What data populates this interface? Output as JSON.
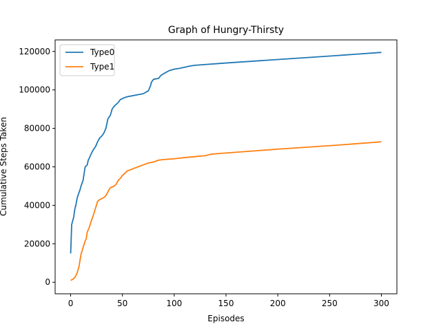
{
  "chart_data": {
    "type": "line",
    "title": "Graph of Hungry-Thirsty",
    "xlabel": "Episodes",
    "ylabel": "Cumulative Steps Taken",
    "xlim": [
      -15,
      315
    ],
    "ylim": [
      -6000,
      126000
    ],
    "xticks": [
      0,
      50,
      100,
      150,
      200,
      250,
      300
    ],
    "yticks": [
      0,
      20000,
      40000,
      60000,
      80000,
      100000,
      120000
    ],
    "grid": false,
    "legend_position": "top-left",
    "series": [
      {
        "name": "Type0",
        "color": "#1f77b4",
        "x": [
          0,
          1,
          2,
          3,
          4,
          5,
          6,
          7,
          8,
          9,
          10,
          12,
          14,
          15,
          16,
          17,
          18,
          20,
          22,
          24,
          26,
          28,
          30,
          32,
          34,
          36,
          38,
          39,
          40,
          42,
          44,
          46,
          48,
          50,
          52,
          55,
          60,
          65,
          70,
          75,
          77,
          78,
          80,
          85,
          87,
          90,
          95,
          100,
          105,
          110,
          115,
          120,
          150,
          200,
          250,
          300
        ],
        "y": [
          15000,
          30000,
          32000,
          34000,
          38000,
          40000,
          43000,
          45000,
          46500,
          48000,
          50000,
          53000,
          60000,
          60500,
          61000,
          63500,
          64500,
          67000,
          69000,
          70500,
          73000,
          75000,
          76000,
          77500,
          80000,
          85000,
          86500,
          88000,
          90000,
          91500,
          92500,
          93500,
          95000,
          95500,
          96000,
          96500,
          97000,
          97500,
          98000,
          99500,
          102000,
          104000,
          105500,
          106000,
          107500,
          108500,
          110000,
          110800,
          111200,
          111800,
          112400,
          112800,
          114000,
          115800,
          117600,
          119500
        ]
      },
      {
        "name": "Type1",
        "color": "#ff7f0e",
        "x": [
          0,
          2,
          4,
          6,
          8,
          10,
          12,
          14,
          15,
          16,
          18,
          20,
          22,
          24,
          26,
          28,
          30,
          32,
          34,
          36,
          38,
          40,
          42,
          44,
          46,
          48,
          50,
          52,
          55,
          58,
          60,
          65,
          70,
          75,
          80,
          85,
          90,
          95,
          100,
          110,
          120,
          130,
          135,
          140,
          150,
          200,
          250,
          300
        ],
        "y": [
          1000,
          1500,
          2500,
          4500,
          8000,
          14500,
          18000,
          21500,
          22500,
          26000,
          28500,
          32000,
          35000,
          38500,
          42000,
          43000,
          43500,
          44000,
          45000,
          47000,
          49000,
          49500,
          50000,
          51000,
          53000,
          54000,
          55500,
          56500,
          58000,
          58500,
          59000,
          60000,
          61000,
          62000,
          62500,
          63500,
          63800,
          64000,
          64200,
          64800,
          65300,
          65800,
          66500,
          66800,
          67200,
          69200,
          71000,
          73000
        ]
      }
    ]
  }
}
